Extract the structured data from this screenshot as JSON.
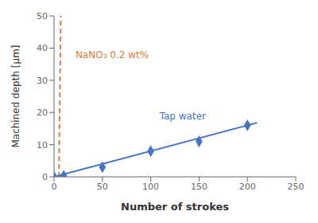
{
  "chart_data": {
    "type": "line",
    "xlabel": "Number of strokes",
    "ylabel": "Machined depth [μm]",
    "xlim": [
      0,
      250
    ],
    "ylim": [
      0,
      50
    ],
    "xticks": [
      0,
      50,
      100,
      150,
      200,
      250
    ],
    "yticks": [
      0,
      10,
      20,
      30,
      40,
      50
    ],
    "grid": false,
    "series": [
      {
        "color": "#E07B39",
        "x": [
          5,
          7
        ],
        "values": [
          0,
          50
        ],
        "line_style": "dashed",
        "marker": "none"
      },
      {
        "color": "#4472C4",
        "x": [
          0,
          10,
          50,
          100,
          150,
          200
        ],
        "values": [
          0,
          0.3,
          3.0,
          8.0,
          11.0,
          16.0
        ],
        "line_style": "none",
        "marker": "diamond",
        "fit": {
          "x": [
            0,
            210
          ],
          "values": [
            0,
            16.8
          ]
        }
      }
    ],
    "annotations": [
      {
        "text": "Tap water",
        "x": 105,
        "y": 19,
        "color": "#4472C4"
      },
      {
        "text": "NaNO₃ 0.2 wt%",
        "x": 18,
        "y": 38,
        "color": "#E07B39"
      }
    ]
  }
}
